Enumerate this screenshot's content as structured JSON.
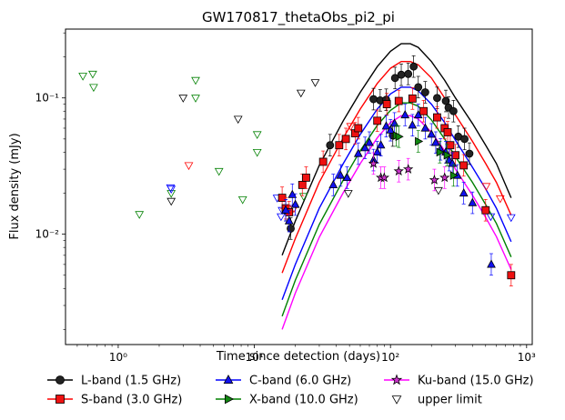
{
  "chart_data": {
    "type": "scatter",
    "title": "GW170817_thetaObs_pi2_pi",
    "xlabel": "Time since detection (days)",
    "ylabel": "Flux density (mJy)",
    "xscale": "log",
    "yscale": "log",
    "xlim": [
      0.41,
      1100
    ],
    "ylim": [
      0.00155,
      0.32
    ],
    "grid": false,
    "legend_placement": "bottom",
    "x_ticks": [
      {
        "value": 1,
        "label": "10⁰"
      },
      {
        "value": 10,
        "label": "10¹"
      },
      {
        "value": 100,
        "label": "10²"
      },
      {
        "value": 1000,
        "label": "10³"
      }
    ],
    "y_ticks": [
      {
        "value": 0.01,
        "label": "10⁻²"
      },
      {
        "value": 0.1,
        "label": "10⁻¹"
      }
    ],
    "series": [
      {
        "name": "L-band (1.5 GHz)",
        "color": "#000000",
        "marker": "circle",
        "marker_fill": "#222222",
        "model": [
          [
            16,
            0.007
          ],
          [
            20,
            0.0125
          ],
          [
            30,
            0.032
          ],
          [
            45,
            0.068
          ],
          [
            60,
            0.11
          ],
          [
            80,
            0.17
          ],
          [
            100,
            0.22
          ],
          [
            120,
            0.25
          ],
          [
            140,
            0.25
          ],
          [
            160,
            0.235
          ],
          [
            200,
            0.185
          ],
          [
            250,
            0.135
          ],
          [
            300,
            0.1
          ],
          [
            400,
            0.065
          ],
          [
            500,
            0.045
          ],
          [
            600,
            0.033
          ],
          [
            770,
            0.0185
          ]
        ],
        "points": [
          [
            17,
            0.015
          ],
          [
            18.5,
            0.011
          ],
          [
            36,
            0.045
          ],
          [
            75,
            0.098
          ],
          [
            84,
            0.096
          ],
          [
            93,
            0.097
          ],
          [
            104,
            0.053
          ],
          [
            108,
            0.14
          ],
          [
            120,
            0.148
          ],
          [
            135,
            0.15
          ],
          [
            148,
            0.17
          ],
          [
            160,
            0.12
          ],
          [
            180,
            0.11
          ],
          [
            220,
            0.1
          ],
          [
            255,
            0.095
          ],
          [
            267,
            0.085
          ],
          [
            290,
            0.08
          ],
          [
            315,
            0.052
          ],
          [
            350,
            0.05
          ],
          [
            380,
            0.039
          ]
        ]
      },
      {
        "name": "S-band (3.0 GHz)",
        "color": "#ff0000",
        "marker": "square",
        "marker_fill": "#ee1111",
        "model": [
          [
            16,
            0.0052
          ],
          [
            20,
            0.0093
          ],
          [
            30,
            0.024
          ],
          [
            45,
            0.051
          ],
          [
            60,
            0.083
          ],
          [
            80,
            0.128
          ],
          [
            100,
            0.165
          ],
          [
            120,
            0.185
          ],
          [
            140,
            0.185
          ],
          [
            160,
            0.175
          ],
          [
            200,
            0.14
          ],
          [
            250,
            0.1
          ],
          [
            300,
            0.075
          ],
          [
            400,
            0.048
          ],
          [
            500,
            0.033
          ],
          [
            600,
            0.024
          ],
          [
            770,
            0.0138
          ]
        ],
        "points": [
          [
            16,
            0.0185
          ],
          [
            17,
            0.0155
          ],
          [
            18,
            0.0145
          ],
          [
            22.5,
            0.023
          ],
          [
            24,
            0.026
          ],
          [
            32,
            0.034
          ],
          [
            42,
            0.045
          ],
          [
            47,
            0.05
          ],
          [
            55,
            0.055
          ],
          [
            58,
            0.06
          ],
          [
            80,
            0.068
          ],
          [
            94,
            0.09
          ],
          [
            115,
            0.095
          ],
          [
            145,
            0.099
          ],
          [
            175,
            0.08
          ],
          [
            220,
            0.072
          ],
          [
            250,
            0.06
          ],
          [
            263,
            0.056
          ],
          [
            275,
            0.045
          ],
          [
            300,
            0.038
          ],
          [
            345,
            0.032
          ],
          [
            500,
            0.015
          ],
          [
            770,
            0.005
          ]
        ]
      },
      {
        "name": "C-band (6.0 GHz)",
        "color": "#0000ff",
        "marker": "triangle-up",
        "marker_fill": "#1111ee",
        "model": [
          [
            16,
            0.0033
          ],
          [
            20,
            0.006
          ],
          [
            30,
            0.0155
          ],
          [
            45,
            0.033
          ],
          [
            60,
            0.054
          ],
          [
            80,
            0.083
          ],
          [
            100,
            0.107
          ],
          [
            120,
            0.12
          ],
          [
            140,
            0.12
          ],
          [
            160,
            0.113
          ],
          [
            200,
            0.09
          ],
          [
            250,
            0.066
          ],
          [
            300,
            0.049
          ],
          [
            400,
            0.031
          ],
          [
            500,
            0.0215
          ],
          [
            600,
            0.0155
          ],
          [
            770,
            0.0088
          ]
        ],
        "points": [
          [
            17,
            0.015
          ],
          [
            18,
            0.0125
          ],
          [
            19,
            0.0195
          ],
          [
            20,
            0.0165
          ],
          [
            38,
            0.023
          ],
          [
            43,
            0.027
          ],
          [
            48,
            0.026
          ],
          [
            58,
            0.039
          ],
          [
            65,
            0.043
          ],
          [
            70,
            0.047
          ],
          [
            75,
            0.035
          ],
          [
            80,
            0.04
          ],
          [
            85,
            0.045
          ],
          [
            93,
            0.062
          ],
          [
            100,
            0.058
          ],
          [
            107,
            0.065
          ],
          [
            128,
            0.075
          ],
          [
            145,
            0.063
          ],
          [
            160,
            0.075
          ],
          [
            180,
            0.06
          ],
          [
            200,
            0.054
          ],
          [
            215,
            0.047
          ],
          [
            233,
            0.042
          ],
          [
            255,
            0.04
          ],
          [
            270,
            0.035
          ],
          [
            285,
            0.033
          ],
          [
            310,
            0.027
          ],
          [
            345,
            0.02
          ],
          [
            400,
            0.017
          ],
          [
            550,
            0.006
          ]
        ]
      },
      {
        "name": "X-band (10.0 GHz)",
        "color": "#008000",
        "marker": "triangle-right",
        "marker_fill": "#118811",
        "model": [
          [
            16,
            0.0025
          ],
          [
            20,
            0.0046
          ],
          [
            30,
            0.0118
          ],
          [
            45,
            0.025
          ],
          [
            60,
            0.041
          ],
          [
            80,
            0.063
          ],
          [
            100,
            0.081
          ],
          [
            120,
            0.092
          ],
          [
            140,
            0.092
          ],
          [
            160,
            0.087
          ],
          [
            200,
            0.069
          ],
          [
            250,
            0.05
          ],
          [
            300,
            0.037
          ],
          [
            400,
            0.024
          ],
          [
            500,
            0.0165
          ],
          [
            600,
            0.012
          ],
          [
            770,
            0.0068
          ]
        ],
        "points": [
          [
            110,
            0.053
          ],
          [
            115,
            0.052
          ],
          [
            160,
            0.048
          ],
          [
            230,
            0.04
          ],
          [
            260,
            0.038
          ],
          [
            290,
            0.027
          ]
        ]
      },
      {
        "name": "Ku-band (15.0 GHz)",
        "color": "#ff00ff",
        "marker": "star",
        "marker_fill": "#cc33cc",
        "model": [
          [
            16,
            0.002
          ],
          [
            20,
            0.0037
          ],
          [
            30,
            0.0095
          ],
          [
            45,
            0.0202
          ],
          [
            60,
            0.033
          ],
          [
            80,
            0.051
          ],
          [
            100,
            0.066
          ],
          [
            120,
            0.074
          ],
          [
            140,
            0.074
          ],
          [
            160,
            0.07
          ],
          [
            200,
            0.056
          ],
          [
            250,
            0.041
          ],
          [
            300,
            0.03
          ],
          [
            400,
            0.0193
          ],
          [
            500,
            0.0133
          ],
          [
            600,
            0.0096
          ],
          [
            770,
            0.0055
          ]
        ],
        "points": [
          [
            75,
            0.033
          ],
          [
            85,
            0.026
          ],
          [
            90,
            0.026
          ],
          [
            115,
            0.029
          ],
          [
            135,
            0.03
          ],
          [
            210,
            0.025
          ],
          [
            250,
            0.026
          ]
        ]
      }
    ],
    "upper_limit_name": "upper limit",
    "upper_limits": [
      {
        "color": "#008000",
        "points": [
          [
            0.55,
            0.145
          ],
          [
            0.65,
            0.15
          ],
          [
            0.66,
            0.12
          ],
          [
            1.43,
            0.014
          ],
          [
            2.45,
            0.02
          ],
          [
            3.7,
            0.135
          ],
          [
            3.7,
            0.1
          ],
          [
            5.5,
            0.029
          ],
          [
            8.2,
            0.018
          ],
          [
            10.5,
            0.054
          ],
          [
            10.5,
            0.04
          ],
          [
            23,
            0.019
          ]
        ]
      },
      {
        "color": "#000000",
        "points": [
          [
            2.45,
            0.0175
          ],
          [
            3.0,
            0.1
          ],
          [
            7.6,
            0.07
          ],
          [
            22,
            0.109
          ],
          [
            28,
            0.13
          ],
          [
            49,
            0.02
          ],
          [
            225,
            0.021
          ]
        ]
      },
      {
        "color": "#ff0000",
        "points": [
          [
            3.3,
            0.032
          ],
          [
            19.5,
            0.0155
          ],
          [
            51,
            0.062
          ],
          [
            505,
            0.0225
          ],
          [
            640,
            0.0183
          ]
        ]
      },
      {
        "color": "#0000ff",
        "points": [
          [
            2.42,
            0.022
          ],
          [
            2.45,
            0.0215
          ],
          [
            14.7,
            0.0185
          ],
          [
            15.7,
            0.0135
          ],
          [
            16,
            0.015
          ],
          [
            545,
            0.0135
          ],
          [
            770,
            0.0133
          ]
        ]
      }
    ]
  }
}
